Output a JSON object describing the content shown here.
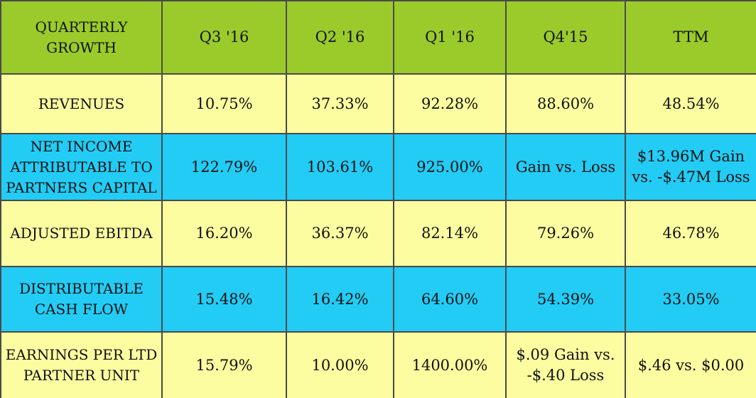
{
  "table": {
    "header": {
      "label": "QUARTERLY GROWTH",
      "columns": [
        "Q3 '16",
        "Q2 '16",
        "Q1 '16",
        "Q4'15",
        "TTM"
      ]
    },
    "rows": [
      {
        "label": "REVENUES",
        "values": [
          "10.75%",
          "37.33%",
          "92.28%",
          "88.60%",
          "48.54%"
        ]
      },
      {
        "label": "NET INCOME ATTRIBUTABLE TO PARTNERS CAPITAL",
        "values": [
          "122.79%",
          "103.61%",
          "925.00%",
          "Gain vs. Loss",
          "$13.96M Gain vs. -$.47M Loss"
        ]
      },
      {
        "label": "ADJUSTED EBITDA",
        "values": [
          "16.20%",
          "36.37%",
          "82.14%",
          "79.26%",
          "46.78%"
        ]
      },
      {
        "label": "DISTRIBUTABLE CASH FLOW",
        "values": [
          "15.48%",
          "16.42%",
          "64.60%",
          "54.39%",
          "33.05%"
        ]
      },
      {
        "label": "EARNINGS PER LTD PARTNER UNIT",
        "values": [
          "15.79%",
          "10.00%",
          "1400.00%",
          "$.09 Gain vs. -$.40 Loss",
          "$.46 vs. $0.00"
        ]
      }
    ]
  },
  "colors": {
    "header_bg": "#9acb2b",
    "row_yellow": "#fcfca0",
    "row_blue": "#22ccf5",
    "border": "#4a4a4a"
  }
}
